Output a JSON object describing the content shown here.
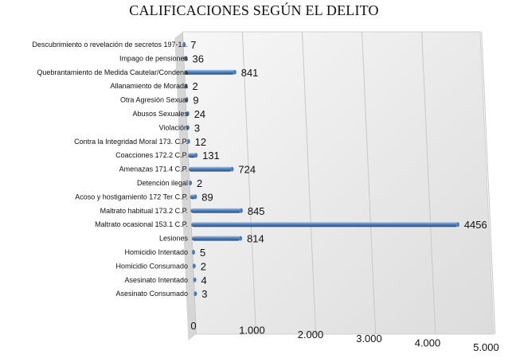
{
  "chart_data": {
    "type": "bar",
    "orientation": "horizontal",
    "title": "CALIFICACIONES SEGÚN EL DELITO",
    "categories": [
      "Descubrimiento o revelación de secretos 197-1...",
      "Impago de pensiones",
      "Quebrantamiento de Medida Cautelar/Condena",
      "Allanamiento de Morada",
      "Otra Agresión Sexual",
      "Abusos Sexuales",
      "Violación",
      "Contra la Integridad Moral 173. C.P.",
      "Coacciones 172.2 C.P.",
      "Amenazas 171.4 C.P.",
      "Detención ilegal",
      "Acoso y hostigamiento 172 Ter C.P.",
      "Maltrato habitual 173.2 C.P.",
      "Maltrato ocasional 153.1 C.P.",
      "Lesiones",
      "Homicidio Intentado",
      "Homicidio Consumado",
      "Asesinato Intentado",
      "Asesinato Consumado"
    ],
    "values": [
      7,
      36,
      841,
      2,
      9,
      24,
      3,
      12,
      131,
      724,
      2,
      89,
      845,
      4456,
      814,
      5,
      2,
      4,
      3
    ],
    "value_labels": [
      "7",
      "36",
      "841",
      "2",
      "9",
      "24",
      "3",
      "12",
      "131",
      "724",
      "2",
      "89",
      "845",
      "4456",
      "814",
      "5",
      "2",
      "4",
      "3"
    ],
    "xlim": [
      0,
      5000
    ],
    "x_ticks": [
      0,
      1000,
      2000,
      3000,
      4000,
      5000
    ],
    "x_tick_labels": [
      "0",
      "1.000",
      "2.000",
      "3.000",
      "4.000",
      "5.000"
    ],
    "grid": true,
    "legend": "none",
    "style": "3d-cylinder",
    "colors": {
      "bar": "#4f81bd",
      "bar_light": "#a9c4e6",
      "bar_dark": "#2c4f80",
      "wall": "#eeeeee",
      "wall_shadow": "#d6d6d6",
      "grid": "#c8c8c8",
      "text": "#111111"
    }
  }
}
